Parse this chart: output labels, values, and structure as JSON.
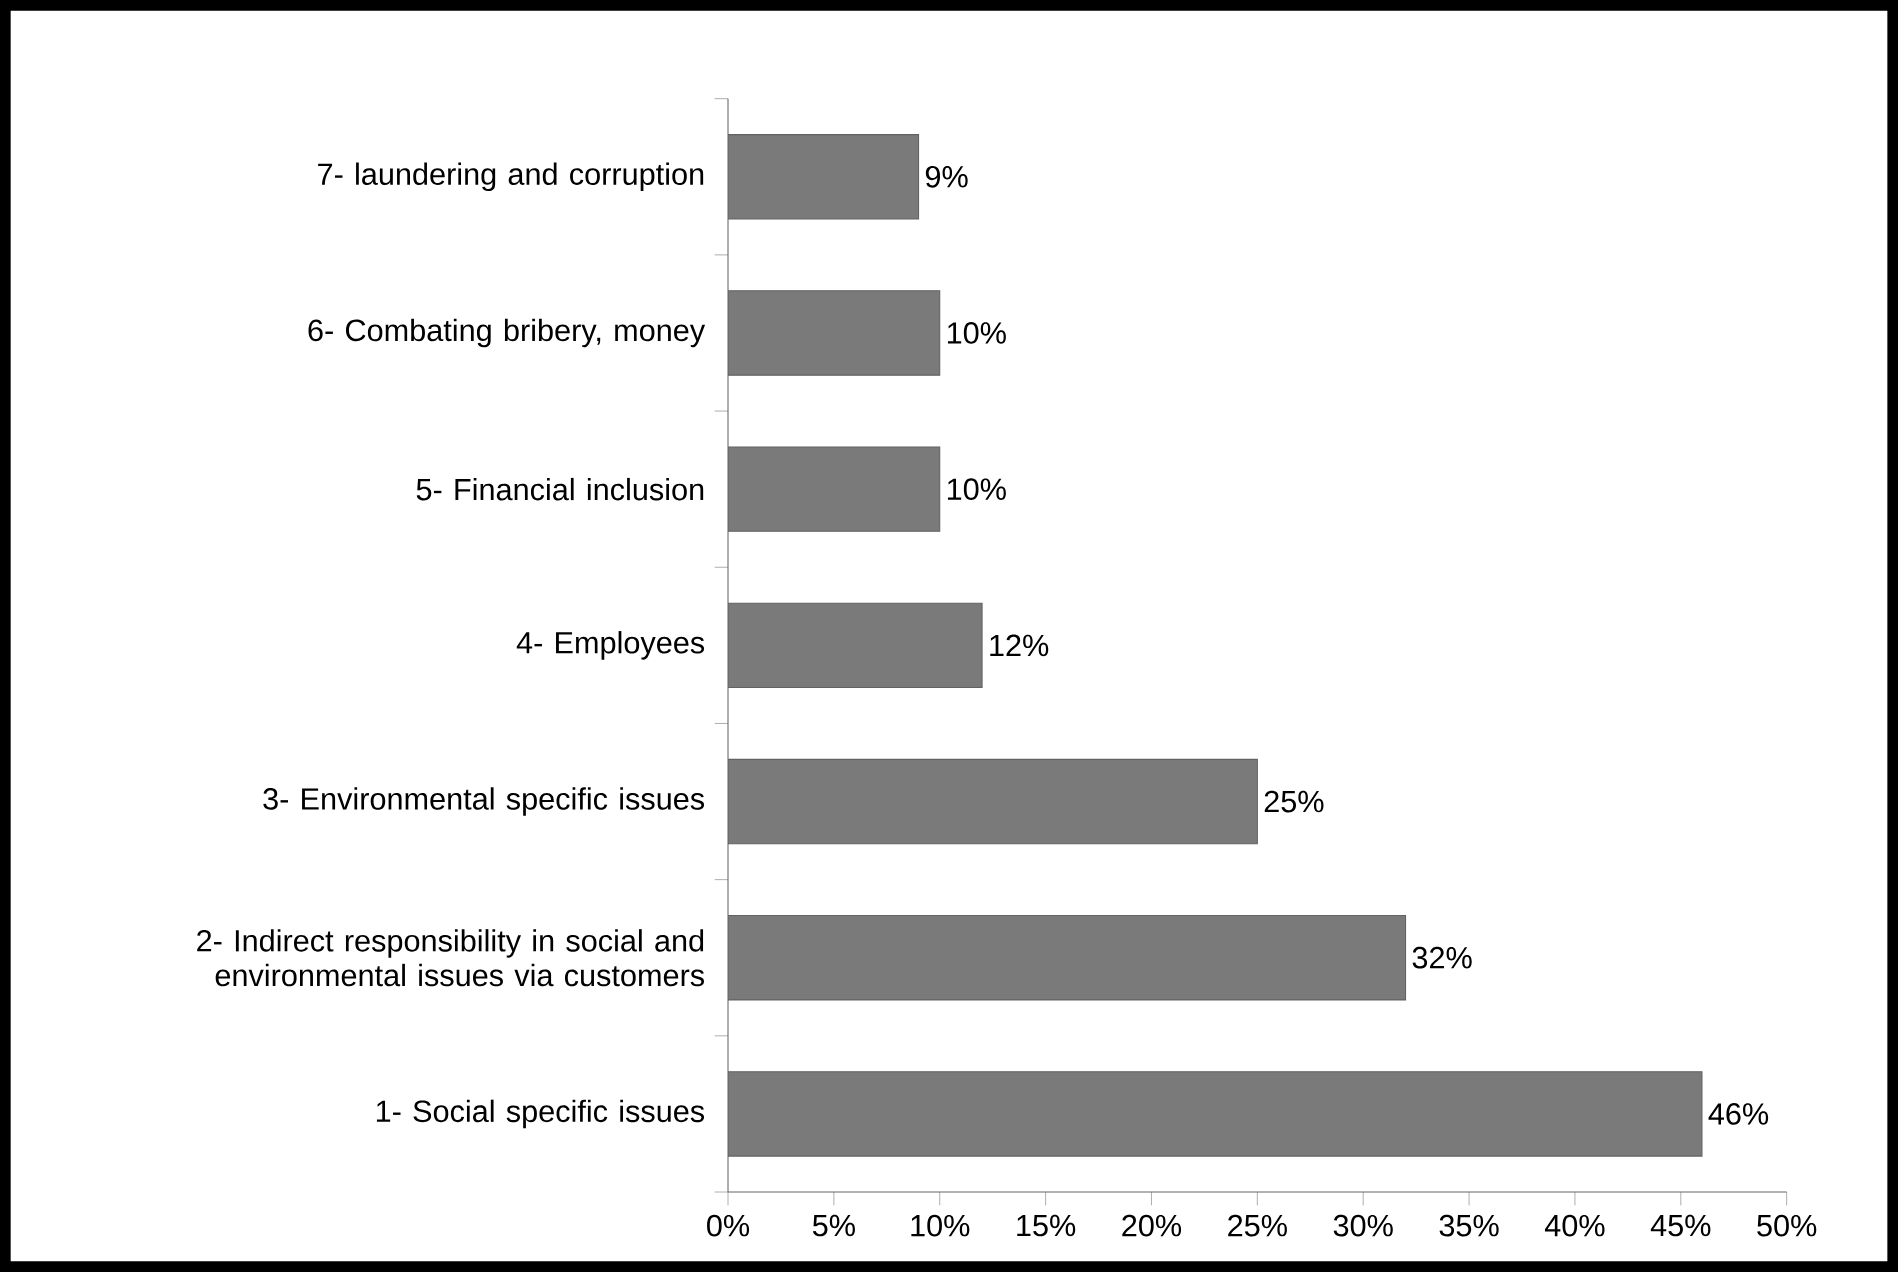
{
  "chart_data": {
    "type": "bar",
    "orientation": "horizontal",
    "categories": [
      "7- laundering and corruption",
      "6- Combating bribery, money",
      "5- Financial inclusion",
      "4- Employees",
      "3- Environmental specific issues",
      "2- Indirect responsibility in social and environmental issues via customers",
      "1- Social specific issues"
    ],
    "values": [
      9,
      10,
      10,
      12,
      25,
      32,
      46
    ],
    "value_labels": [
      "9%",
      "10%",
      "10%",
      "12%",
      "25%",
      "32%",
      "46%"
    ],
    "color": "#7a7a7a",
    "xlim": [
      0,
      50
    ],
    "xticks": [
      {
        "value": 0,
        "label": "0%"
      },
      {
        "value": 5,
        "label": "5%"
      },
      {
        "value": 10,
        "label": "10%"
      },
      {
        "value": 15,
        "label": "15%"
      },
      {
        "value": 20,
        "label": "20%"
      },
      {
        "value": 25,
        "label": "25%"
      },
      {
        "value": 30,
        "label": "30%"
      },
      {
        "value": 35,
        "label": "35%"
      },
      {
        "value": 40,
        "label": "40%"
      },
      {
        "value": 45,
        "label": "45%"
      },
      {
        "value": 50,
        "label": "50%"
      }
    ],
    "stacked": false
  }
}
